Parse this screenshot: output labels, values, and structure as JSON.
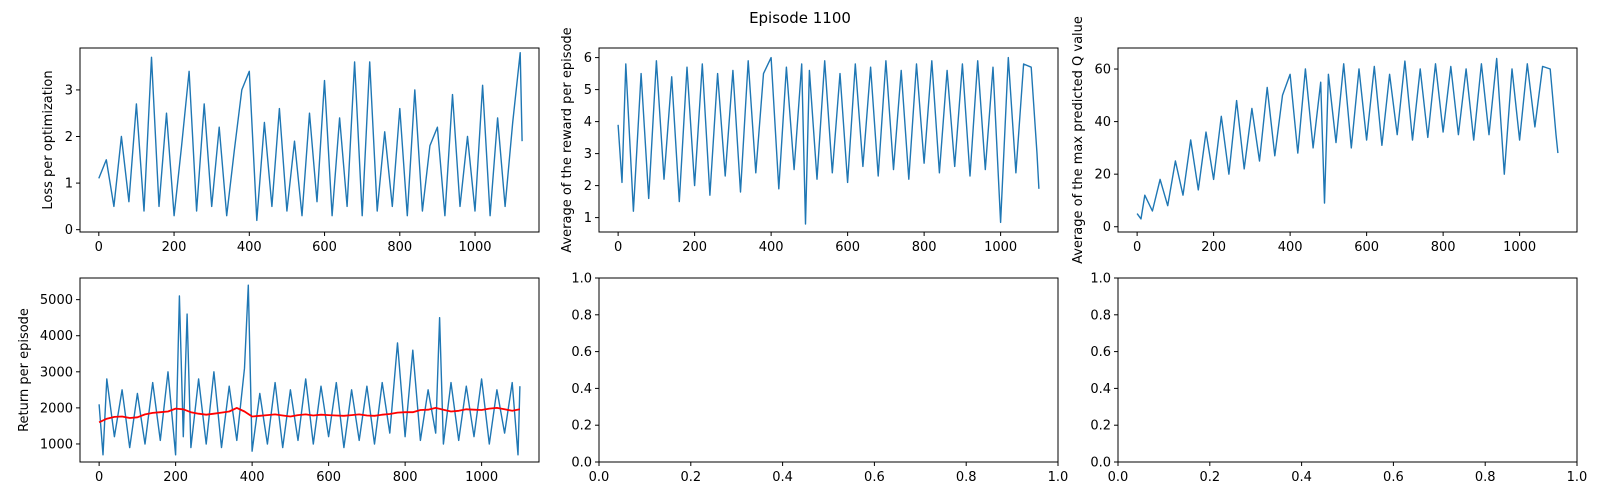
{
  "figure": {
    "suptitle": "Episode 1100"
  },
  "chart_data": [
    {
      "id": "loss",
      "type": "line",
      "ylabel": "Loss per optimization",
      "xlim": [
        -50,
        1170
      ],
      "ylim": [
        -0.05,
        3.9
      ],
      "xticks": [
        0,
        200,
        400,
        600,
        800,
        1000
      ],
      "yticks": [
        0,
        1,
        2,
        3
      ],
      "series": [
        {
          "color": "#1f77b4",
          "x": [
            0,
            20,
            40,
            60,
            80,
            100,
            120,
            140,
            160,
            180,
            200,
            220,
            240,
            260,
            280,
            300,
            320,
            340,
            360,
            380,
            400,
            420,
            440,
            460,
            480,
            500,
            520,
            540,
            560,
            580,
            600,
            620,
            640,
            660,
            680,
            700,
            720,
            740,
            760,
            780,
            800,
            820,
            840,
            860,
            880,
            900,
            920,
            940,
            960,
            980,
            1000,
            1020,
            1040,
            1060,
            1080,
            1100,
            1120,
            1125
          ],
          "y": [
            1.1,
            1.5,
            0.5,
            2.0,
            0.6,
            2.7,
            0.4,
            3.7,
            0.5,
            2.5,
            0.3,
            1.8,
            3.4,
            0.4,
            2.7,
            0.5,
            2.2,
            0.3,
            1.7,
            3.0,
            3.4,
            0.2,
            2.3,
            0.5,
            2.6,
            0.4,
            1.9,
            0.3,
            2.5,
            0.6,
            3.2,
            0.3,
            2.4,
            0.5,
            3.6,
            0.3,
            3.6,
            0.4,
            2.1,
            0.5,
            2.6,
            0.3,
            3.0,
            0.4,
            1.8,
            2.2,
            0.3,
            2.9,
            0.5,
            2.0,
            0.4,
            3.1,
            0.3,
            2.4,
            0.5,
            2.3,
            3.8,
            1.9
          ]
        }
      ]
    },
    {
      "id": "avg-reward",
      "type": "line",
      "ylabel": "Average of the reward per episode",
      "xlim": [
        -50,
        1150
      ],
      "ylim": [
        0.55,
        6.3
      ],
      "xticks": [
        0,
        200,
        400,
        600,
        800,
        1000
      ],
      "yticks": [
        1,
        2,
        3,
        4,
        5,
        6
      ],
      "series": [
        {
          "color": "#1f77b4",
          "x": [
            0,
            10,
            20,
            40,
            60,
            80,
            100,
            120,
            140,
            160,
            180,
            200,
            220,
            240,
            260,
            280,
            300,
            320,
            340,
            360,
            380,
            400,
            420,
            440,
            460,
            480,
            490,
            500,
            520,
            540,
            560,
            580,
            600,
            620,
            640,
            660,
            680,
            700,
            720,
            740,
            760,
            780,
            800,
            820,
            840,
            860,
            880,
            900,
            920,
            940,
            960,
            980,
            1000,
            1020,
            1040,
            1060,
            1080,
            1095,
            1100
          ],
          "y": [
            3.9,
            2.1,
            5.8,
            1.2,
            5.5,
            1.6,
            5.9,
            2.2,
            5.4,
            1.5,
            5.7,
            2.0,
            5.8,
            1.7,
            5.5,
            2.3,
            5.6,
            1.8,
            5.9,
            2.4,
            5.5,
            6.0,
            1.9,
            5.7,
            2.5,
            5.8,
            0.8,
            5.6,
            2.2,
            5.9,
            2.4,
            5.5,
            2.1,
            5.8,
            2.6,
            5.7,
            2.3,
            5.9,
            2.5,
            5.6,
            2.2,
            5.8,
            2.7,
            5.9,
            2.4,
            5.6,
            2.6,
            5.8,
            2.3,
            5.9,
            2.5,
            5.7,
            0.85,
            6.0,
            2.4,
            5.8,
            5.7,
            3.0,
            1.9
          ]
        }
      ]
    },
    {
      "id": "max-q",
      "type": "line",
      "ylabel": "Average of the max predicted Q value",
      "xlim": [
        -50,
        1150
      ],
      "ylim": [
        -2,
        68
      ],
      "xticks": [
        0,
        200,
        400,
        600,
        800,
        1000
      ],
      "yticks": [
        0,
        20,
        40,
        60
      ],
      "series": [
        {
          "color": "#1f77b4",
          "x": [
            0,
            10,
            20,
            40,
            60,
            80,
            100,
            120,
            140,
            160,
            180,
            200,
            220,
            240,
            260,
            280,
            300,
            320,
            340,
            360,
            380,
            400,
            420,
            440,
            460,
            480,
            490,
            500,
            520,
            540,
            560,
            580,
            600,
            620,
            640,
            660,
            680,
            700,
            720,
            740,
            760,
            780,
            800,
            820,
            840,
            860,
            880,
            900,
            920,
            940,
            960,
            980,
            1000,
            1020,
            1040,
            1060,
            1080,
            1095,
            1100
          ],
          "y": [
            5,
            3,
            12,
            6,
            18,
            8,
            25,
            12,
            33,
            14,
            36,
            18,
            42,
            20,
            48,
            22,
            45,
            25,
            53,
            27,
            50,
            58,
            28,
            60,
            30,
            55,
            9,
            58,
            32,
            62,
            30,
            60,
            33,
            61,
            31,
            58,
            35,
            63,
            33,
            60,
            34,
            62,
            36,
            61,
            35,
            60,
            33,
            62,
            35,
            64,
            20,
            60,
            33,
            62,
            38,
            61,
            60,
            35,
            28
          ]
        }
      ]
    },
    {
      "id": "return",
      "type": "line",
      "ylabel": "Return per episode",
      "xlim": [
        -50,
        1150
      ],
      "ylim": [
        500,
        5600
      ],
      "xticks": [
        0,
        200,
        400,
        600,
        800,
        1000
      ],
      "yticks": [
        1000,
        2000,
        3000,
        4000,
        5000
      ],
      "series": [
        {
          "color": "#1f77b4",
          "x": [
            0,
            10,
            20,
            40,
            60,
            80,
            100,
            120,
            140,
            160,
            180,
            200,
            210,
            220,
            230,
            240,
            260,
            280,
            300,
            320,
            340,
            360,
            380,
            390,
            400,
            420,
            440,
            460,
            480,
            500,
            520,
            540,
            560,
            580,
            600,
            620,
            640,
            660,
            680,
            700,
            720,
            740,
            760,
            780,
            800,
            820,
            840,
            860,
            880,
            890,
            900,
            920,
            940,
            960,
            980,
            1000,
            1020,
            1040,
            1060,
            1080,
            1095,
            1100
          ],
          "y": [
            2100,
            700,
            2800,
            1200,
            2500,
            900,
            2400,
            1000,
            2700,
            1100,
            3000,
            700,
            5100,
            1200,
            4600,
            900,
            2800,
            1000,
            3000,
            900,
            2600,
            1100,
            3100,
            5400,
            800,
            2400,
            1000,
            2700,
            900,
            2500,
            1100,
            2800,
            1000,
            2600,
            1200,
            2700,
            900,
            2500,
            1100,
            2600,
            1000,
            2700,
            1300,
            3800,
            1200,
            3600,
            1100,
            2500,
            1300,
            4500,
            1000,
            2700,
            1100,
            2600,
            1200,
            2800,
            1000,
            2500,
            1300,
            2700,
            700,
            2600
          ]
        },
        {
          "color": "#ff0000",
          "x": [
            0,
            20,
            40,
            60,
            80,
            100,
            120,
            140,
            160,
            180,
            200,
            220,
            240,
            260,
            280,
            300,
            320,
            340,
            360,
            380,
            400,
            420,
            440,
            460,
            480,
            500,
            520,
            540,
            560,
            580,
            600,
            620,
            640,
            660,
            680,
            700,
            720,
            740,
            760,
            780,
            800,
            820,
            840,
            860,
            880,
            900,
            920,
            940,
            960,
            980,
            1000,
            1020,
            1040,
            1060,
            1080,
            1100
          ],
          "y": [
            1600,
            1700,
            1750,
            1760,
            1720,
            1740,
            1820,
            1860,
            1880,
            1900,
            1980,
            1960,
            1880,
            1840,
            1810,
            1840,
            1870,
            1900,
            2000,
            1900,
            1760,
            1780,
            1800,
            1820,
            1790,
            1760,
            1800,
            1820,
            1790,
            1810,
            1800,
            1790,
            1780,
            1800,
            1820,
            1790,
            1780,
            1810,
            1830,
            1870,
            1880,
            1880,
            1940,
            1950,
            2000,
            1950,
            1900,
            1920,
            1960,
            1950,
            1940,
            1980,
            2000,
            1960,
            1920,
            1960
          ]
        }
      ]
    },
    {
      "id": "empty-1",
      "type": "line",
      "xlim": [
        0,
        1
      ],
      "ylim": [
        0,
        1
      ],
      "xticks": [
        0.0,
        0.2,
        0.4,
        0.6,
        0.8,
        1.0
      ],
      "yticks": [
        0.0,
        0.2,
        0.4,
        0.6,
        0.8,
        1.0
      ],
      "series": []
    },
    {
      "id": "empty-2",
      "type": "line",
      "xlim": [
        0,
        1
      ],
      "ylim": [
        0,
        1
      ],
      "xticks": [
        0.0,
        0.2,
        0.4,
        0.6,
        0.8,
        1.0
      ],
      "yticks": [
        0.0,
        0.2,
        0.4,
        0.6,
        0.8,
        1.0
      ],
      "series": []
    }
  ]
}
